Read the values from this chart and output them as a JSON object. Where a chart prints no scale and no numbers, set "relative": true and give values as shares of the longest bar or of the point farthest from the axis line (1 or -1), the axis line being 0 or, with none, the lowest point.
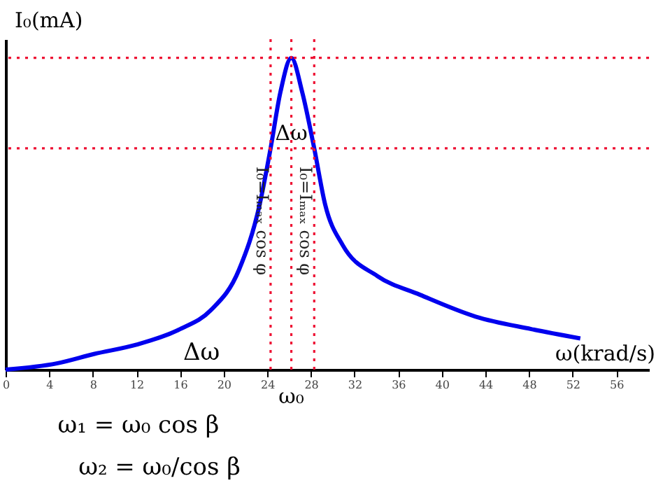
{
  "chart_data": {
    "type": "line",
    "relative": true,
    "xlabel": "ω(krad/s)",
    "ylabel": "I₀(mA)",
    "xlim": [
      0,
      59
    ],
    "xticks": [
      0,
      4,
      8,
      12,
      16,
      20,
      24,
      28,
      32,
      36,
      40,
      44,
      48,
      52,
      56
    ],
    "tick_labels": "x",
    "grid": false,
    "marker": "none",
    "line_style": "solid",
    "x": [
      0,
      4.7,
      8.1,
      12,
      16,
      18.8,
      21.4,
      23.3,
      24.3,
      25.2,
      26.2,
      27.2,
      28.3,
      29.3,
      30.9,
      34.1,
      38,
      43.1,
      48.2,
      52.7
    ],
    "series": [
      {
        "color": "#0000ee",
        "values": [
          0,
          0.02,
          0.05,
          0.08,
          0.13,
          0.19,
          0.32,
          0.53,
          0.71,
          0.89,
          1,
          0.89,
          0.71,
          0.53,
          0.4,
          0.3,
          0.24,
          0.17,
          0.13,
          0.1
        ]
      }
    ],
    "ref_lines": [
      {
        "axis": "y",
        "value": 1,
        "color": "#ee1133",
        "line_style": "dotted"
      },
      {
        "axis": "y",
        "value": 0.71,
        "color": "#ee1133",
        "line_style": "dotted"
      },
      {
        "axis": "x",
        "value": 24.3,
        "label": "I₀=Iₘₐₓ cos φ",
        "color": "#ee1133",
        "line_style": "dotted"
      },
      {
        "axis": "x",
        "value": 26.2,
        "label": "ω₀",
        "color": "#ee1133",
        "line_style": "dotted"
      },
      {
        "axis": "x",
        "value": 28.3,
        "label": "I₀=Iₘₐₓ cos φ",
        "color": "#ee1133",
        "line_style": "dotted"
      }
    ],
    "annotations": [
      {
        "text": "Δω",
        "x": 26.2,
        "y": 0.71
      },
      "Δω",
      "ω₁ = ω₀ cos β",
      "ω₂ = ω₀/cos β"
    ]
  }
}
